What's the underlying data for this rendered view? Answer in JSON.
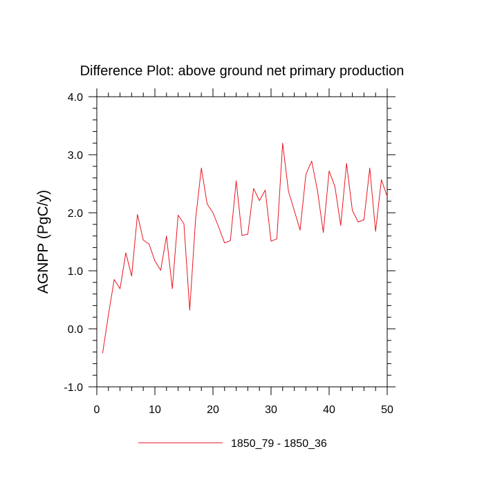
{
  "chart_data": {
    "type": "line",
    "title": "Difference Plot: above ground net primary production",
    "xlabel": "",
    "ylabel": "AGNPP  (PgC/y)",
    "xlim": [
      0,
      50
    ],
    "ylim": [
      -1.0,
      4.0
    ],
    "x_ticks": [
      0,
      10,
      20,
      30,
      40,
      50
    ],
    "x_tick_labels": [
      "0",
      "10",
      "20",
      "30",
      "40",
      "50"
    ],
    "y_ticks": [
      -1.0,
      0.0,
      1.0,
      2.0,
      3.0,
      4.0
    ],
    "y_tick_labels": [
      "-1.0",
      "0.0",
      "1.0",
      "2.0",
      "3.0",
      "4.0"
    ],
    "grid": false,
    "legend_position": "bottom-center",
    "line_color": "#e8141e",
    "series": [
      {
        "name": "1850_79 - 1850_36",
        "x": [
          1,
          2,
          3,
          4,
          5,
          6,
          7,
          8,
          9,
          10,
          11,
          12,
          13,
          14,
          15,
          16,
          17,
          18,
          19,
          20,
          21,
          22,
          23,
          24,
          25,
          26,
          27,
          28,
          29,
          30,
          31,
          32,
          33,
          34,
          35,
          36,
          37,
          38,
          39,
          40,
          41,
          42,
          43,
          44,
          45,
          46,
          47,
          48,
          49,
          50
        ],
        "values": [
          -0.42,
          0.24,
          0.85,
          0.69,
          1.31,
          0.91,
          1.97,
          1.53,
          1.46,
          1.17,
          1.01,
          1.6,
          0.69,
          1.96,
          1.81,
          0.32,
          1.88,
          2.77,
          2.15,
          2.0,
          1.75,
          1.48,
          1.52,
          2.55,
          1.61,
          1.63,
          2.42,
          2.21,
          2.39,
          1.51,
          1.55,
          3.2,
          2.37,
          2.04,
          1.7,
          2.66,
          2.89,
          2.38,
          1.66,
          2.72,
          2.45,
          1.78,
          2.85,
          2.04,
          1.84,
          1.88,
          2.77,
          1.68,
          2.57,
          2.28
        ]
      }
    ]
  }
}
